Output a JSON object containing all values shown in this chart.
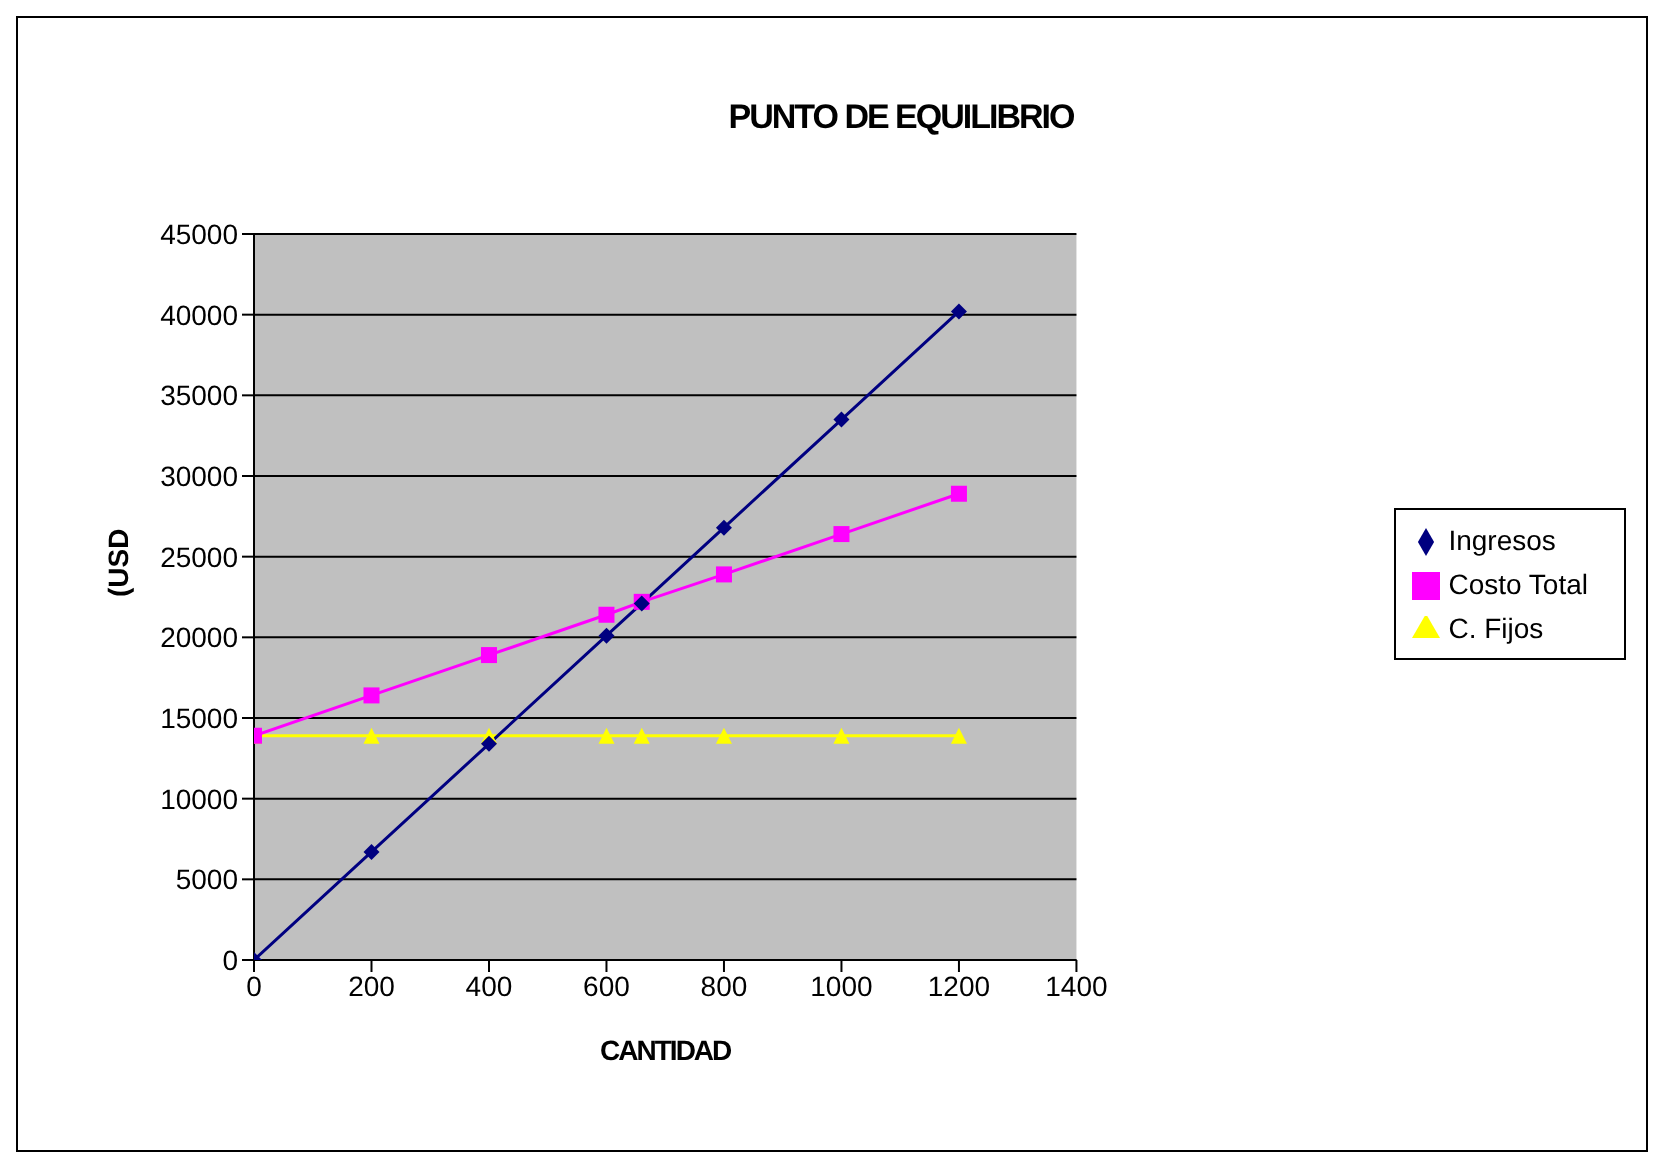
{
  "chart_data": {
    "type": "line",
    "title": "PUNTO DE EQUILIBRIO",
    "xlabel": "CANTIDAD",
    "ylabel": "(USD",
    "x": [
      0,
      200,
      400,
      600,
      660,
      800,
      1000,
      1200
    ],
    "series": [
      {
        "name": "Ingresos",
        "color": "#000080",
        "marker": "diamond",
        "values": [
          0,
          6700,
          13400,
          20100,
          22100,
          26800,
          33500,
          40200
        ]
      },
      {
        "name": "Costo Total",
        "color": "#ff00ff",
        "marker": "square",
        "values": [
          13900,
          16400,
          18900,
          21400,
          22200,
          23900,
          26400,
          28900
        ]
      },
      {
        "name": "C. Fijos",
        "color": "#ffff00",
        "marker": "triangle",
        "values": [
          13900,
          13900,
          13900,
          13900,
          13900,
          13900,
          13900,
          13900
        ]
      }
    ],
    "xlim": [
      0,
      1400
    ],
    "xticks": [
      0,
      200,
      400,
      600,
      800,
      1000,
      1200,
      1400
    ],
    "ylim": [
      0,
      45000
    ],
    "yticks": [
      0,
      5000,
      10000,
      15000,
      20000,
      25000,
      30000,
      35000,
      40000,
      45000
    ],
    "grid": "y",
    "legend": "right"
  }
}
